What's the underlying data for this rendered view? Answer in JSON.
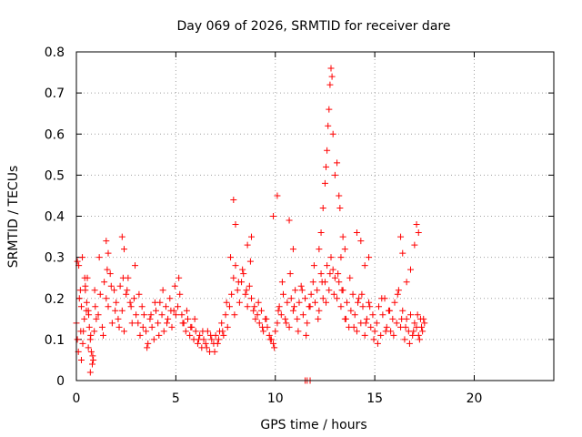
{
  "chart_data": {
    "type": "scatter",
    "title": "Day 069 of 2026, SRMTID for receiver dare",
    "xlabel": "GPS time / hours",
    "ylabel": "SRMTID / TECUs",
    "xlim": [
      0,
      24
    ],
    "ylim": [
      0,
      0.8
    ],
    "xticks": [
      0,
      5,
      10,
      15,
      20
    ],
    "xtick_labels": [
      "0",
      "5",
      "10",
      "15",
      "20"
    ],
    "yticks": [
      0,
      0.1,
      0.2,
      0.3,
      0.4,
      0.5,
      0.6,
      0.7,
      0.8
    ],
    "ytick_labels": [
      "0",
      "0.1",
      "0.2",
      "0.3",
      "0.4",
      "0.5",
      "0.6",
      "0.7",
      "0.8"
    ],
    "grid": true,
    "marker": "+",
    "color": "#ff0000",
    "series": [
      {
        "name": "SRMTID",
        "x": [
          0.0,
          0.05,
          0.1,
          0.15,
          0.2,
          0.25,
          0.3,
          0.35,
          0.4,
          0.45,
          0.5,
          0.55,
          0.6,
          0.65,
          0.7,
          0.75,
          0.8,
          0.85,
          0.9,
          0.95,
          1.0,
          0.12,
          0.22,
          0.32,
          0.42,
          0.52,
          0.62,
          0.72,
          0.82,
          0.92,
          1.1,
          1.2,
          1.3,
          1.4,
          1.5,
          1.6,
          1.7,
          1.8,
          1.9,
          2.0,
          2.1,
          2.2,
          2.3,
          2.4,
          2.5,
          2.6,
          2.7,
          2.8,
          2.9,
          3.0,
          1.15,
          1.35,
          1.55,
          1.75,
          1.95,
          2.15,
          2.35,
          2.55,
          2.75,
          2.95,
          3.1,
          3.2,
          3.3,
          3.4,
          3.5,
          3.6,
          3.7,
          3.8,
          3.9,
          4.0,
          4.1,
          4.2,
          4.3,
          4.4,
          4.5,
          4.6,
          4.7,
          4.8,
          4.9,
          5.0,
          3.15,
          3.35,
          3.55,
          3.75,
          3.95,
          4.15,
          4.35,
          4.55,
          4.75,
          4.95,
          5.1,
          5.2,
          5.3,
          5.4,
          5.5,
          5.6,
          5.7,
          5.8,
          5.9,
          6.0,
          6.1,
          6.2,
          6.3,
          6.4,
          6.5,
          6.6,
          6.7,
          6.8,
          6.9,
          7.0,
          5.15,
          5.35,
          5.55,
          5.75,
          5.95,
          6.15,
          6.35,
          6.55,
          6.75,
          6.95,
          7.1,
          7.2,
          7.3,
          7.4,
          7.5,
          7.6,
          7.7,
          7.8,
          7.9,
          8.0,
          8.1,
          8.2,
          8.3,
          8.4,
          8.5,
          8.6,
          8.7,
          8.8,
          8.9,
          9.0,
          7.15,
          7.35,
          7.55,
          7.75,
          7.95,
          8.15,
          8.35,
          8.55,
          8.75,
          8.95,
          9.1,
          9.2,
          9.3,
          9.4,
          9.5,
          9.6,
          9.7,
          9.8,
          9.9,
          10.0,
          10.1,
          10.2,
          10.3,
          10.4,
          10.5,
          10.6,
          10.7,
          10.8,
          10.9,
          11.0,
          9.15,
          9.35,
          9.55,
          9.75,
          9.95,
          10.15,
          10.35,
          10.55,
          10.75,
          10.95,
          11.1,
          11.2,
          11.3,
          11.4,
          11.5,
          11.6,
          11.7,
          11.8,
          11.9,
          12.0,
          12.1,
          12.2,
          12.3,
          12.4,
          12.5,
          12.6,
          12.7,
          12.8,
          12.9,
          13.0,
          11.15,
          11.35,
          11.55,
          11.75,
          11.95,
          12.15,
          12.35,
          12.55,
          12.75,
          12.95,
          13.1,
          13.2,
          13.3,
          13.4,
          13.5,
          13.6,
          13.7,
          13.8,
          13.9,
          14.0,
          14.1,
          14.2,
          14.3,
          14.4,
          14.5,
          14.6,
          14.7,
          14.8,
          14.9,
          15.0,
          13.15,
          13.35,
          13.55,
          13.75,
          13.95,
          14.15,
          14.35,
          14.55,
          14.75,
          14.95,
          15.1,
          15.2,
          15.3,
          15.4,
          15.5,
          15.6,
          15.7,
          15.8,
          15.9,
          16.0,
          16.1,
          16.2,
          16.3,
          16.4,
          16.5,
          16.6,
          16.7,
          16.8,
          16.9,
          17.0,
          15.15,
          15.35,
          15.55,
          15.75,
          15.95,
          16.15,
          16.35,
          16.55,
          16.75,
          16.95,
          17.1,
          17.2,
          17.3,
          17.4,
          17.5,
          17.15,
          17.25,
          17.35,
          17.45,
          0.05,
          0.25,
          0.45,
          0.6,
          0.7,
          1.5,
          1.6,
          2.3,
          2.4,
          7.9,
          8.0,
          8.6,
          8.8,
          9.9,
          10.1,
          10.7,
          10.9,
          11.5,
          11.6,
          11.75,
          12.2,
          12.3,
          12.4,
          12.5,
          12.55,
          12.6,
          12.65,
          12.7,
          12.75,
          12.8,
          12.85,
          12.9,
          13.0,
          13.1,
          13.2,
          13.25,
          13.3,
          13.4,
          13.5,
          14.1,
          14.3,
          14.5,
          14.7,
          16.3,
          16.4,
          16.6,
          16.8,
          17.0,
          17.1,
          17.2
        ],
        "y": [
          0.14,
          0.1,
          0.07,
          0.2,
          0.22,
          0.18,
          0.3,
          0.12,
          0.15,
          0.22,
          0.17,
          0.25,
          0.08,
          0.13,
          0.1,
          0.07,
          0.04,
          0.05,
          0.12,
          0.18,
          0.15,
          0.28,
          0.12,
          0.09,
          0.25,
          0.19,
          0.16,
          0.11,
          0.06,
          0.22,
          0.16,
          0.21,
          0.13,
          0.24,
          0.2,
          0.18,
          0.26,
          0.14,
          0.22,
          0.19,
          0.15,
          0.23,
          0.17,
          0.12,
          0.21,
          0.25,
          0.19,
          0.14,
          0.2,
          0.16,
          0.3,
          0.11,
          0.27,
          0.23,
          0.17,
          0.13,
          0.25,
          0.22,
          0.18,
          0.28,
          0.14,
          0.11,
          0.18,
          0.16,
          0.12,
          0.09,
          0.15,
          0.13,
          0.1,
          0.17,
          0.14,
          0.19,
          0.16,
          0.12,
          0.18,
          0.15,
          0.2,
          0.13,
          0.17,
          0.16,
          0.21,
          0.13,
          0.08,
          0.16,
          0.19,
          0.11,
          0.22,
          0.14,
          0.17,
          0.23,
          0.18,
          0.21,
          0.16,
          0.14,
          0.12,
          0.15,
          0.11,
          0.13,
          0.1,
          0.12,
          0.09,
          0.11,
          0.08,
          0.1,
          0.09,
          0.12,
          0.07,
          0.1,
          0.09,
          0.11,
          0.25,
          0.14,
          0.17,
          0.13,
          0.15,
          0.1,
          0.12,
          0.08,
          0.11,
          0.07,
          0.09,
          0.12,
          0.14,
          0.11,
          0.16,
          0.13,
          0.18,
          0.21,
          0.25,
          0.28,
          0.22,
          0.19,
          0.24,
          0.26,
          0.21,
          0.18,
          0.23,
          0.2,
          0.17,
          0.15,
          0.1,
          0.12,
          0.19,
          0.3,
          0.16,
          0.24,
          0.27,
          0.22,
          0.29,
          0.18,
          0.16,
          0.14,
          0.17,
          0.12,
          0.15,
          0.13,
          0.11,
          0.1,
          0.09,
          0.12,
          0.14,
          0.18,
          0.16,
          0.21,
          0.15,
          0.19,
          0.13,
          0.2,
          0.17,
          0.22,
          0.19,
          0.13,
          0.15,
          0.1,
          0.08,
          0.17,
          0.24,
          0.14,
          0.26,
          0.18,
          0.15,
          0.19,
          0.23,
          0.16,
          0.2,
          0.14,
          0.18,
          0.21,
          0.24,
          0.19,
          0.22,
          0.17,
          0.26,
          0.2,
          0.24,
          0.28,
          0.22,
          0.3,
          0.27,
          0.25,
          0.12,
          0.22,
          0.11,
          0.18,
          0.28,
          0.15,
          0.24,
          0.19,
          0.26,
          0.21,
          0.2,
          0.24,
          0.18,
          0.22,
          0.15,
          0.19,
          0.13,
          0.17,
          0.21,
          0.16,
          0.12,
          0.2,
          0.14,
          0.18,
          0.11,
          0.15,
          0.19,
          0.13,
          0.16,
          0.12,
          0.26,
          0.22,
          0.15,
          0.25,
          0.13,
          0.19,
          0.21,
          0.14,
          0.18,
          0.1,
          0.14,
          0.18,
          0.11,
          0.16,
          0.2,
          0.13,
          0.17,
          0.12,
          0.15,
          0.19,
          0.14,
          0.22,
          0.13,
          0.17,
          0.1,
          0.15,
          0.12,
          0.16,
          0.11,
          0.14,
          0.09,
          0.2,
          0.12,
          0.17,
          0.11,
          0.21,
          0.15,
          0.13,
          0.09,
          0.12,
          0.13,
          0.11,
          0.15,
          0.12,
          0.14,
          0.16,
          0.1,
          0.13,
          0.15,
          0.29,
          0.05,
          0.23,
          0.17,
          0.02,
          0.34,
          0.31,
          0.35,
          0.32,
          0.44,
          0.38,
          0.33,
          0.35,
          0.4,
          0.45,
          0.39,
          0.32,
          0.0,
          0.0,
          0.0,
          0.32,
          0.36,
          0.42,
          0.48,
          0.52,
          0.56,
          0.62,
          0.66,
          0.72,
          0.76,
          0.74,
          0.6,
          0.5,
          0.53,
          0.45,
          0.42,
          0.3,
          0.35,
          0.32,
          0.36,
          0.34,
          0.28,
          0.3,
          0.35,
          0.31,
          0.24,
          0.27,
          0.33,
          0.38,
          0.36
        ]
      }
    ]
  }
}
